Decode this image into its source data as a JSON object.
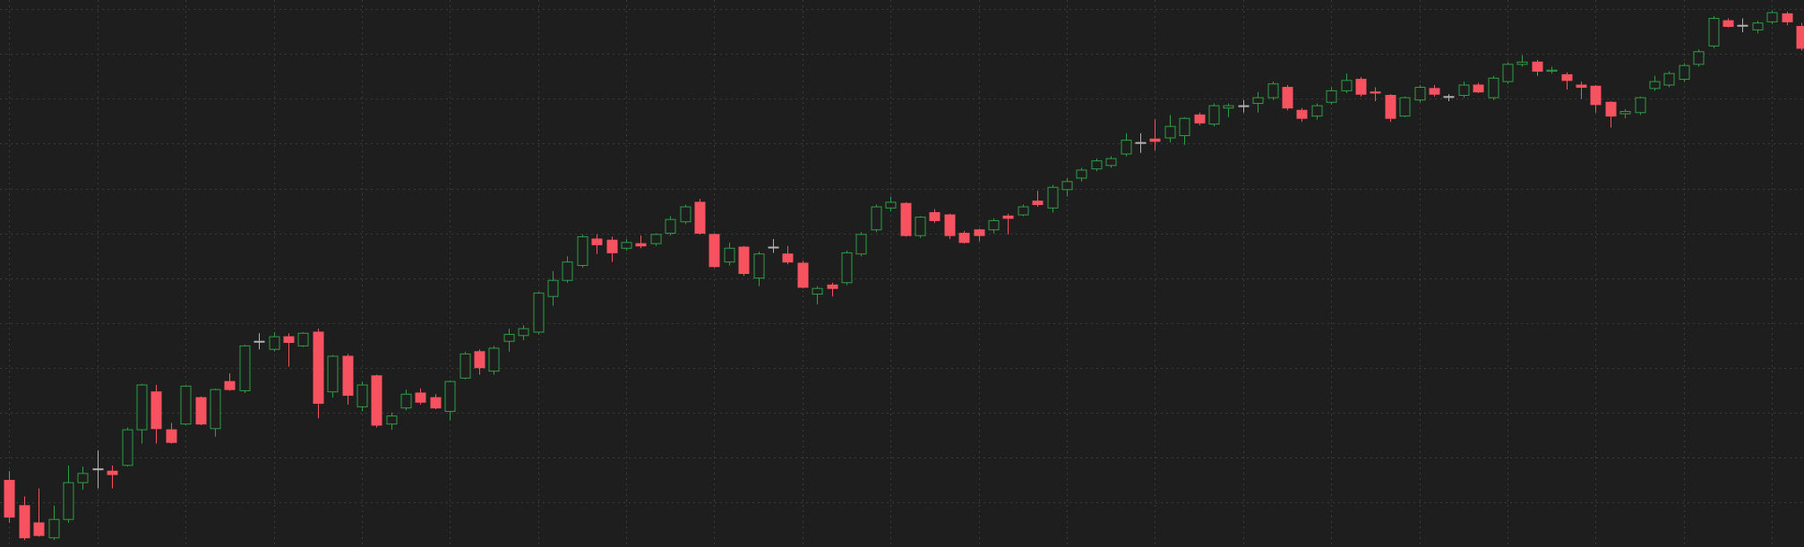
{
  "chart_data": {
    "type": "candlestick",
    "open": [
      58,
      36,
      21,
      8,
      24,
      56,
      68,
      66,
      71,
      102,
      135,
      102,
      107,
      130,
      103,
      144,
      136,
      179,
      172,
      183,
      175,
      187,
      135,
      166,
      122,
      149,
      107,
      121,
      134,
      130,
      118,
      147,
      170,
      153,
      179,
      184,
      187,
      218,
      232,
      245,
      268,
      267,
      260,
      264,
      264,
      273,
      283,
      300,
      272,
      248,
      261,
      234,
      261,
      255,
      247,
      220,
      228,
      230,
      255,
      276,
      295,
      299,
      271,
      291,
      289,
      273,
      276,
      276,
      288,
      289,
      301,
      295,
      311,
      321,
      329,
      332,
      342,
      352,
      355,
      356,
      358,
      376,
      368,
      382,
      384,
      386,
      391,
      400,
      380,
      375,
      387,
      397,
      407,
      396,
      393,
      375,
      389,
      399,
      392,
      393,
      402,
      391,
      405,
      420,
      422,
      414,
      411,
      402,
      401,
      387,
      377,
      378,
      399,
      402,
      407,
      420,
      436,
      458,
      454,
      450,
      457,
      464,
      453
    ],
    "high": [
      66,
      44,
      51,
      36,
      71,
      70,
      84,
      71,
      104,
      142,
      141,
      108,
      141,
      131,
      138,
      151,
      176,
      186,
      187,
      186,
      187,
      190,
      167,
      168,
      144,
      150,
      117,
      137,
      138,
      133,
      145,
      170,
      172,
      175,
      190,
      193,
      222,
      240,
      253,
      272,
      272,
      270,
      268,
      271,
      273,
      288,
      298,
      303,
      273,
      265,
      262,
      257,
      268,
      262,
      249,
      227,
      230,
      258,
      274,
      298,
      305,
      300,
      288,
      294,
      290,
      275,
      277,
      286,
      290,
      298,
      310,
      315,
      321,
      330,
      338,
      340,
      360,
      360,
      372,
      376,
      374,
      378,
      386,
      386,
      389,
      396,
      405,
      402,
      382,
      386,
      400,
      412,
      409,
      400,
      394,
      392,
      402,
      402,
      394,
      405,
      404,
      410,
      422,
      428,
      424,
      418,
      413,
      405,
      402,
      388,
      381,
      392,
      410,
      414,
      421,
      433,
      462,
      460,
      460,
      458,
      467,
      466,
      456
    ],
    "low": [
      21,
      6,
      9,
      6,
      21,
      50,
      51,
      51,
      70,
      90,
      90,
      90,
      106,
      106,
      96,
      136,
      134,
      172,
      170,
      157,
      174,
      112,
      130,
      124,
      118,
      104,
      102,
      119,
      124,
      120,
      110,
      146,
      150,
      150,
      170,
      180,
      185,
      210,
      230,
      243,
      255,
      248,
      258,
      260,
      262,
      271,
      281,
      272,
      243,
      245,
      236,
      227,
      256,
      246,
      225,
      211,
      218,
      228,
      253,
      274,
      292,
      270,
      269,
      282,
      268,
      264,
      266,
      273,
      272,
      288,
      296,
      291,
      305,
      318,
      327,
      330,
      340,
      343,
      345,
      352,
      350,
      367,
      366,
      374,
      378,
      378,
      389,
      380,
      370,
      372,
      385,
      395,
      392,
      388,
      370,
      374,
      387,
      392,
      388,
      391,
      395,
      389,
      403,
      418,
      410,
      412,
      398,
      390,
      378,
      365,
      373,
      376,
      397,
      400,
      405,
      418,
      434,
      452,
      448,
      447,
      455,
      454,
      432
    ],
    "close": [
      26,
      8,
      10,
      24,
      56,
      64,
      68,
      63,
      102,
      141,
      103,
      91,
      140,
      107,
      137,
      137,
      175,
      179,
      183,
      178,
      186,
      125,
      166,
      132,
      141,
      106,
      114,
      133,
      126,
      121,
      144,
      168,
      156,
      173,
      185,
      190,
      221,
      232,
      248,
      270,
      263,
      256,
      265,
      262,
      272,
      285,
      296,
      273,
      244,
      260,
      238,
      255,
      261,
      248,
      226,
      225,
      225,
      256,
      272,
      296,
      300,
      271,
      287,
      284,
      271,
      265,
      271,
      284,
      286,
      296,
      298,
      313,
      318,
      328,
      336,
      338,
      354,
      352,
      353,
      366,
      373,
      369,
      384,
      384,
      384,
      391,
      403,
      382,
      373,
      384,
      397,
      406,
      394,
      395,
      373,
      391,
      400,
      394,
      392,
      402,
      396,
      408,
      420,
      422,
      414,
      415,
      406,
      400,
      385,
      375,
      379,
      391,
      405,
      412,
      419,
      431,
      460,
      453,
      454,
      456,
      465,
      457,
      434
    ],
    "up_color": "#2e9e45",
    "down_color": "#f7525f",
    "flat_color": "#b2b2b2",
    "ylim": [
      0,
      476
    ],
    "yticks": [
      39,
      78,
      117,
      156,
      195,
      234,
      273,
      312,
      351,
      390,
      429,
      468
    ],
    "grid": true
  }
}
